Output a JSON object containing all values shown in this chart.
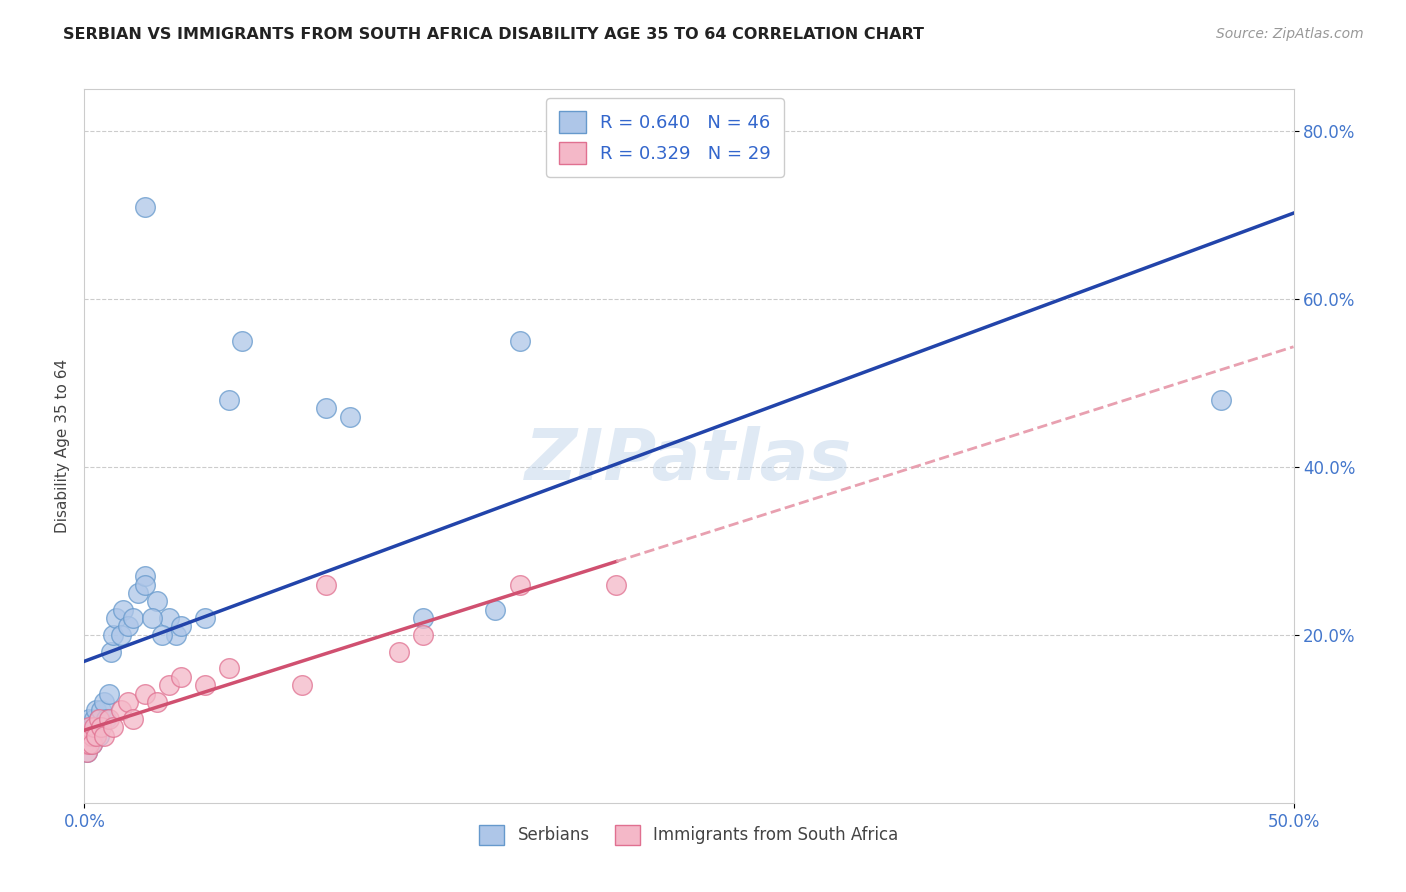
{
  "title": "SERBIAN VS IMMIGRANTS FROM SOUTH AFRICA DISABILITY AGE 35 TO 64 CORRELATION CHART",
  "source": "Source: ZipAtlas.com",
  "ylabel_label": "Disability Age 35 to 64",
  "xlim": [
    0.0,
    0.5
  ],
  "ylim": [
    0.0,
    0.85
  ],
  "x_ticks": [
    0.0,
    0.5
  ],
  "x_tick_labels": [
    "0.0%",
    "50.0%"
  ],
  "y_ticks": [
    0.2,
    0.4,
    0.6,
    0.8
  ],
  "y_tick_labels": [
    "20.0%",
    "40.0%",
    "60.0%",
    "80.0%"
  ],
  "serbians_x": [
    0.0,
    0.001,
    0.001,
    0.001,
    0.002,
    0.002,
    0.002,
    0.003,
    0.003,
    0.003,
    0.004,
    0.004,
    0.005,
    0.005,
    0.006,
    0.006,
    0.007,
    0.008,
    0.009,
    0.01,
    0.011,
    0.012,
    0.013,
    0.015,
    0.016,
    0.018,
    0.02,
    0.022,
    0.025,
    0.03,
    0.035,
    0.038,
    0.04,
    0.05,
    0.06,
    0.065,
    0.1,
    0.11,
    0.14,
    0.17,
    0.18,
    0.025,
    0.028,
    0.032,
    0.47,
    0.025
  ],
  "serbians_y": [
    0.07,
    0.08,
    0.06,
    0.09,
    0.07,
    0.08,
    0.1,
    0.08,
    0.09,
    0.07,
    0.1,
    0.08,
    0.09,
    0.11,
    0.1,
    0.08,
    0.11,
    0.12,
    0.1,
    0.13,
    0.18,
    0.2,
    0.22,
    0.2,
    0.23,
    0.21,
    0.22,
    0.25,
    0.27,
    0.24,
    0.22,
    0.2,
    0.21,
    0.22,
    0.48,
    0.55,
    0.47,
    0.46,
    0.22,
    0.23,
    0.55,
    0.26,
    0.22,
    0.2,
    0.48,
    0.71
  ],
  "immigrants_x": [
    0.0,
    0.001,
    0.001,
    0.002,
    0.002,
    0.003,
    0.003,
    0.004,
    0.005,
    0.006,
    0.007,
    0.008,
    0.01,
    0.012,
    0.015,
    0.018,
    0.02,
    0.025,
    0.03,
    0.035,
    0.04,
    0.05,
    0.06,
    0.09,
    0.1,
    0.13,
    0.14,
    0.18,
    0.22
  ],
  "immigrants_y": [
    0.07,
    0.06,
    0.08,
    0.07,
    0.09,
    0.08,
    0.07,
    0.09,
    0.08,
    0.1,
    0.09,
    0.08,
    0.1,
    0.09,
    0.11,
    0.12,
    0.1,
    0.13,
    0.12,
    0.14,
    0.15,
    0.14,
    0.16,
    0.14,
    0.26,
    0.18,
    0.2,
    0.26,
    0.26
  ],
  "serbian_color": "#aec6e8",
  "serbian_edge_color": "#6699cc",
  "immigrant_color": "#f4b8c8",
  "immigrant_edge_color": "#e07090",
  "serbian_R": 0.64,
  "serbian_N": 46,
  "immigrant_R": 0.329,
  "immigrant_N": 29,
  "regression_serbian_color": "#2244aa",
  "regression_immigrant_color": "#d05070",
  "regression_immigrant_dashed_color": "#e8a0b0",
  "watermark": "ZIPatlas",
  "background_color": "#ffffff",
  "grid_color": "#cccccc"
}
